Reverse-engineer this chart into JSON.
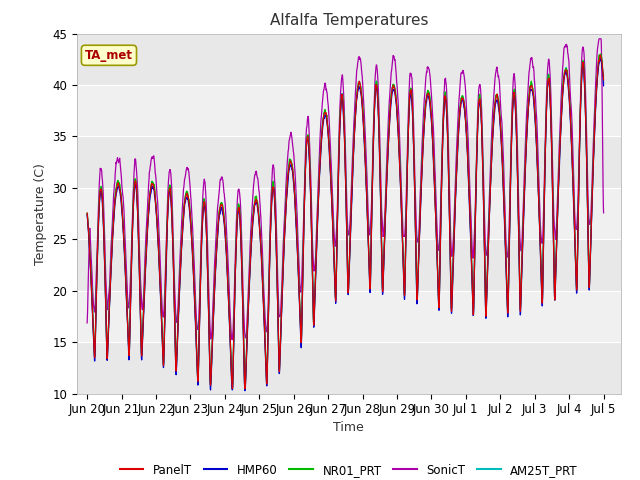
{
  "title": "Alfalfa Temperatures",
  "xlabel": "Time",
  "ylabel": "Temperature (C)",
  "ylim": [
    10,
    45
  ],
  "background_color": "#ffffff",
  "plot_bg_color": "#f0f0f0",
  "grid_color": "#ffffff",
  "band_colors": [
    "#e8e8e8",
    "#f0f0f0"
  ],
  "annotation_text": "TA_met",
  "annotation_color": "#aa0000",
  "annotation_bg": "#ffffcc",
  "annotation_edge": "#999900",
  "series_colors": {
    "PanelT": "#dd0000",
    "HMP60": "#0000cc",
    "NR01_PRT": "#00bb00",
    "SonicT": "#aa00aa",
    "AM25T_PRT": "#00bbbb"
  },
  "legend_labels": [
    "PanelT",
    "HMP60",
    "NR01_PRT",
    "SonicT",
    "AM25T_PRT"
  ],
  "tick_labels": [
    "Jun 20",
    "Jun 21",
    "Jun 22",
    "Jun 23",
    "Jun 24",
    "Jun 25",
    "Jun 26",
    "Jun 27",
    "Jun 28",
    "Jun 29",
    "Jun 30",
    "Jul 1",
    "Jul 2",
    "Jul 3",
    "Jul 4",
    "Jul 5"
  ],
  "tick_positions": [
    0,
    1,
    2,
    3,
    4,
    5,
    6,
    7,
    8,
    9,
    10,
    11,
    12,
    13,
    14,
    15
  ],
  "yticks": [
    10,
    15,
    20,
    25,
    30,
    35,
    40,
    45
  ]
}
